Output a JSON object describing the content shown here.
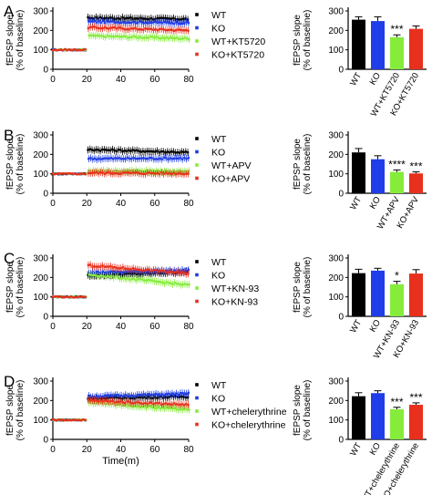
{
  "colors": {
    "wt": "#000000",
    "ko": "#1f3de8",
    "wt_drug": "#86ec3c",
    "ko_drug": "#e8301c"
  },
  "shared": {
    "time_label": "Time(m)",
    "ylabel_line1": "fEPSP slope",
    "ylabel_line2": "(% of baseline)"
  },
  "chart_data": [
    {
      "panel": "A",
      "type": "line",
      "xlabel": "",
      "ylabel": "fEPSP slope (% of baseline)",
      "xlim": [
        0,
        80
      ],
      "ylim": [
        0,
        300
      ],
      "xticks": [
        0,
        20,
        40,
        60,
        80
      ],
      "yticks": [
        0,
        100,
        200,
        300
      ],
      "legend": "right",
      "series": [
        {
          "name": "WT",
          "color": "#000000",
          "baseline": 100,
          "start": 265,
          "end": 258
        },
        {
          "name": "KO",
          "color": "#1f3de8",
          "baseline": 100,
          "start": 245,
          "end": 238
        },
        {
          "name": "WT+KT5720",
          "color": "#86ec3c",
          "baseline": 100,
          "start": 172,
          "end": 158
        },
        {
          "name": "KO+KT5720",
          "color": "#e8301c",
          "baseline": 100,
          "start": 215,
          "end": 200
        }
      ]
    },
    {
      "panel": "A",
      "type": "bar",
      "xlabel": "",
      "ylabel": "fEPSP slope (% of baseline)",
      "ylim": [
        0,
        300
      ],
      "yticks": [
        0,
        100,
        200,
        300
      ],
      "categories": [
        "WT",
        "KO",
        "WT+KT5720",
        "KO+KT5720"
      ],
      "values": [
        255,
        248,
        165,
        208
      ],
      "errors": [
        15,
        22,
        12,
        15
      ],
      "significance": [
        "",
        "",
        "***",
        ""
      ]
    },
    {
      "panel": "B",
      "type": "line",
      "xlabel": "",
      "ylabel": "fEPSP slope (% of baseline)",
      "xlim": [
        0,
        80
      ],
      "ylim": [
        0,
        300
      ],
      "xticks": [
        0,
        20,
        40,
        60,
        80
      ],
      "yticks": [
        0,
        100,
        200,
        300
      ],
      "legend": "right",
      "series": [
        {
          "name": "WT",
          "color": "#000000",
          "baseline": 100,
          "start": 225,
          "end": 210
        },
        {
          "name": "KO",
          "color": "#1f3de8",
          "baseline": 100,
          "start": 178,
          "end": 180
        },
        {
          "name": "WT+APV",
          "color": "#86ec3c",
          "baseline": 100,
          "start": 115,
          "end": 110
        },
        {
          "name": "KO+APV",
          "color": "#e8301c",
          "baseline": 100,
          "start": 105,
          "end": 102
        }
      ]
    },
    {
      "panel": "B",
      "type": "bar",
      "xlabel": "",
      "ylabel": "fEPSP slope (% of baseline)",
      "ylim": [
        0,
        300
      ],
      "yticks": [
        0,
        100,
        200,
        300
      ],
      "categories": [
        "WT",
        "KO",
        "WT+APV",
        "KO+APV"
      ],
      "values": [
        210,
        175,
        110,
        102
      ],
      "errors": [
        20,
        18,
        10,
        8
      ],
      "significance": [
        "",
        "",
        "****",
        "***"
      ]
    },
    {
      "panel": "C",
      "type": "line",
      "xlabel": "",
      "ylabel": "fEPSP slope (% of baseline)",
      "xlim": [
        0,
        80
      ],
      "ylim": [
        0,
        300
      ],
      "xticks": [
        0,
        20,
        40,
        60,
        80
      ],
      "yticks": [
        0,
        100,
        200,
        300
      ],
      "legend": "right",
      "series": [
        {
          "name": "WT",
          "color": "#000000",
          "baseline": 100,
          "start": 210,
          "end": 228
        },
        {
          "name": "KO",
          "color": "#1f3de8",
          "baseline": 100,
          "start": 225,
          "end": 235
        },
        {
          "name": "WT+KN-93",
          "color": "#86ec3c",
          "baseline": 100,
          "start": 215,
          "end": 160
        },
        {
          "name": "KO+KN-93",
          "color": "#e8301c",
          "baseline": 100,
          "start": 262,
          "end": 220
        }
      ]
    },
    {
      "panel": "C",
      "type": "bar",
      "xlabel": "",
      "ylabel": "fEPSP slope (% of baseline)",
      "ylim": [
        0,
        300
      ],
      "yticks": [
        0,
        100,
        200,
        300
      ],
      "categories": [
        "WT",
        "KO",
        "WT+KN-93",
        "KO+KN-93"
      ],
      "values": [
        222,
        235,
        165,
        220
      ],
      "errors": [
        20,
        12,
        15,
        20
      ],
      "significance": [
        "",
        "",
        "*",
        ""
      ]
    },
    {
      "panel": "D",
      "type": "line",
      "xlabel": "Time(m)",
      "ylabel": "fEPSP slope (% of baseline)",
      "xlim": [
        0,
        80
      ],
      "ylim": [
        0,
        300
      ],
      "xticks": [
        0,
        20,
        40,
        60,
        80
      ],
      "yticks": [
        0,
        100,
        200,
        300
      ],
      "legend": "right",
      "series": [
        {
          "name": "WT",
          "color": "#000000",
          "baseline": 100,
          "start": 210,
          "end": 220
        },
        {
          "name": "KO",
          "color": "#1f3de8",
          "baseline": 100,
          "start": 220,
          "end": 235
        },
        {
          "name": "WT+chelerythrine",
          "color": "#86ec3c",
          "baseline": 100,
          "start": 190,
          "end": 150
        },
        {
          "name": "KO+chelerythrine",
          "color": "#e8301c",
          "baseline": 100,
          "start": 200,
          "end": 178
        }
      ]
    },
    {
      "panel": "D",
      "type": "bar",
      "xlabel": "",
      "ylabel": "fEPSP slope (% of baseline)",
      "ylim": [
        0,
        300
      ],
      "yticks": [
        0,
        100,
        200,
        300
      ],
      "categories": [
        "WT",
        "KO",
        "WT+chelerythrine",
        "KO+chelerythrine"
      ],
      "values": [
        222,
        238,
        155,
        178
      ],
      "errors": [
        18,
        12,
        10,
        10
      ],
      "significance": [
        "",
        "",
        "***",
        "***"
      ]
    }
  ]
}
